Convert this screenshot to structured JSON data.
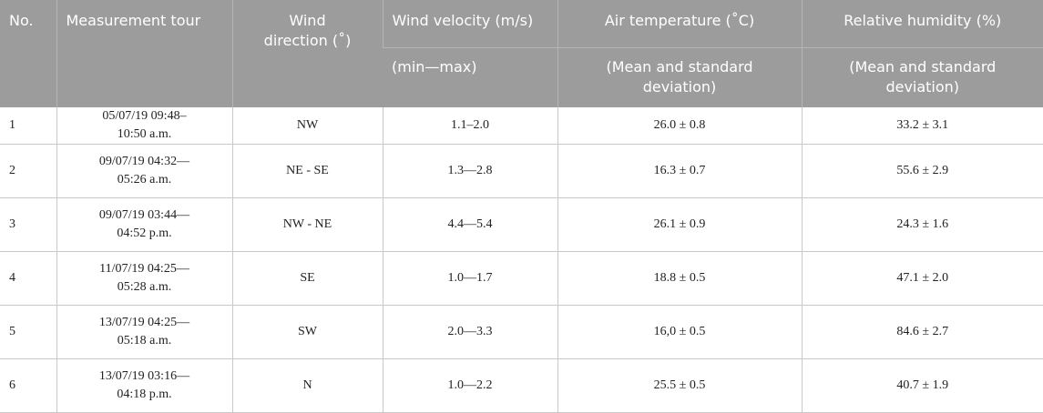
{
  "table": {
    "header": [
      [
        "No.",
        "Measurement tour",
        "Wind direction (˚)",
        "Wind velocity (m/s)",
        "Air temperature (˚C)",
        "Relative humidity (%)"
      ],
      [
        "(min—max)",
        "(Mean and standard deviation)",
        "(Mean and standard deviation)"
      ]
    ],
    "rows": [
      [
        "1",
        "05/07/19 09:48–10:50 a.m.",
        "NW",
        "1.1–2.0",
        "26.0 ± 0.8",
        "33.2 ± 3.1"
      ],
      [
        "2",
        "09/07/19 04:32—05:26 a.m.",
        "NE - SE",
        "1.3—2.8",
        "16.3 ± 0.7",
        "55.6 ± 2.9"
      ],
      [
        "3",
        "09/07/19 03:44—04:52 p.m.",
        "NW - NE",
        "4.4—5.4",
        "26.1 ± 0.9",
        "24.3 ± 1.6"
      ],
      [
        "4",
        "11/07/19 04:25—05:28 a.m.",
        "SE",
        "1.0—1.7",
        "18.8 ± 0.5",
        "47.1 ± 2.0"
      ],
      [
        "5",
        "13/07/19 04:25—05:18 a.m.",
        "SW",
        "2.0—3.3",
        "16,0 ± 0.5",
        "84.6 ± 2.7"
      ],
      [
        "6",
        "13/07/19 03:16—04:18 p.m.",
        "N",
        "1.0—2.2",
        "25.5 ± 0.5",
        "40.7 ± 1.9"
      ]
    ]
  }
}
